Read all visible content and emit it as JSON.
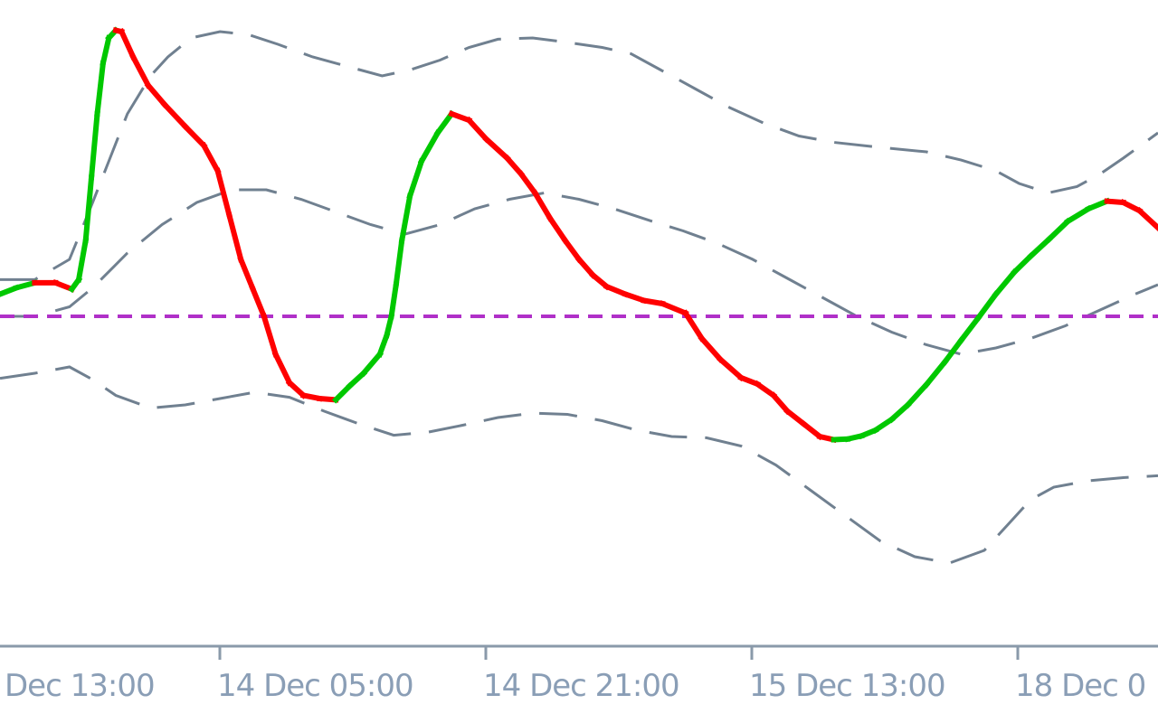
{
  "chart_data": {
    "type": "line",
    "title": "",
    "xlabel": "",
    "ylabel": "",
    "x_tick_labels": [
      "Dec 13:00",
      "14 Dec 05:00",
      "14 Dec 21:00",
      "15 Dec 13:00",
      "18 Dec 0"
    ],
    "x_range": [
      0,
      1
    ],
    "y_range": [
      0,
      1
    ],
    "grid": false,
    "legend": "none",
    "zero_line": {
      "y": 0.5,
      "color": "#b030c8",
      "style": "dashed"
    },
    "series": [
      {
        "role": "oscillator",
        "color_rising": "#00c800",
        "color_falling": "#ff0000",
        "points": [
          [
            0.0,
            0.465
          ],
          [
            0.014,
            0.455
          ],
          [
            0.03,
            0.447
          ],
          [
            0.048,
            0.447
          ],
          [
            0.062,
            0.457
          ],
          [
            0.068,
            0.442
          ],
          [
            0.074,
            0.38
          ],
          [
            0.079,
            0.28
          ],
          [
            0.084,
            0.18
          ],
          [
            0.089,
            0.1
          ],
          [
            0.094,
            0.06
          ],
          [
            0.1,
            0.048
          ],
          [
            0.105,
            0.05
          ],
          [
            0.115,
            0.09
          ],
          [
            0.128,
            0.135
          ],
          [
            0.142,
            0.165
          ],
          [
            0.16,
            0.2
          ],
          [
            0.176,
            0.23
          ],
          [
            0.188,
            0.27
          ],
          [
            0.198,
            0.34
          ],
          [
            0.208,
            0.41
          ],
          [
            0.218,
            0.455
          ],
          [
            0.228,
            0.5
          ],
          [
            0.238,
            0.56
          ],
          [
            0.25,
            0.605
          ],
          [
            0.262,
            0.625
          ],
          [
            0.276,
            0.63
          ],
          [
            0.29,
            0.632
          ],
          [
            0.302,
            0.61
          ],
          [
            0.314,
            0.59
          ],
          [
            0.328,
            0.56
          ],
          [
            0.334,
            0.53
          ],
          [
            0.338,
            0.5
          ],
          [
            0.342,
            0.45
          ],
          [
            0.347,
            0.38
          ],
          [
            0.354,
            0.31
          ],
          [
            0.364,
            0.255
          ],
          [
            0.378,
            0.21
          ],
          [
            0.39,
            0.18
          ],
          [
            0.405,
            0.19
          ],
          [
            0.42,
            0.22
          ],
          [
            0.438,
            0.25
          ],
          [
            0.45,
            0.275
          ],
          [
            0.462,
            0.305
          ],
          [
            0.475,
            0.345
          ],
          [
            0.488,
            0.38
          ],
          [
            0.5,
            0.41
          ],
          [
            0.512,
            0.435
          ],
          [
            0.524,
            0.453
          ],
          [
            0.54,
            0.465
          ],
          [
            0.556,
            0.475
          ],
          [
            0.572,
            0.48
          ],
          [
            0.592,
            0.495
          ],
          [
            0.606,
            0.535
          ],
          [
            0.622,
            0.568
          ],
          [
            0.64,
            0.597
          ],
          [
            0.654,
            0.607
          ],
          [
            0.668,
            0.625
          ],
          [
            0.68,
            0.65
          ],
          [
            0.694,
            0.67
          ],
          [
            0.708,
            0.69
          ],
          [
            0.72,
            0.695
          ],
          [
            0.732,
            0.694
          ],
          [
            0.744,
            0.689
          ],
          [
            0.756,
            0.68
          ],
          [
            0.77,
            0.663
          ],
          [
            0.784,
            0.64
          ],
          [
            0.8,
            0.608
          ],
          [
            0.816,
            0.572
          ],
          [
            0.83,
            0.538
          ],
          [
            0.845,
            0.502
          ],
          [
            0.86,
            0.465
          ],
          [
            0.876,
            0.43
          ],
          [
            0.89,
            0.405
          ],
          [
            0.906,
            0.378
          ],
          [
            0.922,
            0.35
          ],
          [
            0.94,
            0.33
          ],
          [
            0.956,
            0.318
          ],
          [
            0.97,
            0.32
          ],
          [
            0.984,
            0.333
          ],
          [
            1.0,
            0.36
          ]
        ]
      }
    ],
    "envelope_bands": [
      {
        "color": "#708090",
        "style": "dashed",
        "points": [
          [
            0.0,
            0.442
          ],
          [
            0.03,
            0.442
          ],
          [
            0.06,
            0.41
          ],
          [
            0.08,
            0.32
          ],
          [
            0.095,
            0.25
          ],
          [
            0.11,
            0.18
          ],
          [
            0.13,
            0.12
          ],
          [
            0.145,
            0.09
          ],
          [
            0.165,
            0.06
          ],
          [
            0.19,
            0.05
          ],
          [
            0.215,
            0.055
          ],
          [
            0.24,
            0.07
          ],
          [
            0.27,
            0.09
          ],
          [
            0.3,
            0.105
          ],
          [
            0.33,
            0.12
          ],
          [
            0.355,
            0.11
          ],
          [
            0.38,
            0.095
          ],
          [
            0.405,
            0.075
          ],
          [
            0.43,
            0.062
          ],
          [
            0.46,
            0.06
          ],
          [
            0.49,
            0.067
          ],
          [
            0.52,
            0.075
          ],
          [
            0.545,
            0.085
          ],
          [
            0.57,
            0.11
          ],
          [
            0.6,
            0.14
          ],
          [
            0.63,
            0.17
          ],
          [
            0.66,
            0.195
          ],
          [
            0.69,
            0.215
          ],
          [
            0.72,
            0.225
          ],
          [
            0.76,
            0.233
          ],
          [
            0.8,
            0.24
          ],
          [
            0.83,
            0.253
          ],
          [
            0.86,
            0.27
          ],
          [
            0.88,
            0.29
          ],
          [
            0.905,
            0.305
          ],
          [
            0.93,
            0.295
          ],
          [
            0.95,
            0.275
          ],
          [
            0.97,
            0.25
          ],
          [
            0.985,
            0.23
          ],
          [
            1.0,
            0.21
          ]
        ]
      },
      {
        "color": "#708090",
        "style": "dashed",
        "points": [
          [
            0.0,
            0.5
          ],
          [
            0.03,
            0.5
          ],
          [
            0.06,
            0.485
          ],
          [
            0.08,
            0.455
          ],
          [
            0.11,
            0.4
          ],
          [
            0.14,
            0.355
          ],
          [
            0.17,
            0.32
          ],
          [
            0.2,
            0.3
          ],
          [
            0.23,
            0.3
          ],
          [
            0.26,
            0.315
          ],
          [
            0.29,
            0.335
          ],
          [
            0.32,
            0.355
          ],
          [
            0.35,
            0.37
          ],
          [
            0.38,
            0.355
          ],
          [
            0.41,
            0.33
          ],
          [
            0.44,
            0.315
          ],
          [
            0.47,
            0.305
          ],
          [
            0.5,
            0.315
          ],
          [
            0.53,
            0.33
          ],
          [
            0.56,
            0.348
          ],
          [
            0.59,
            0.365
          ],
          [
            0.62,
            0.385
          ],
          [
            0.65,
            0.41
          ],
          [
            0.68,
            0.44
          ],
          [
            0.71,
            0.47
          ],
          [
            0.74,
            0.5
          ],
          [
            0.77,
            0.525
          ],
          [
            0.8,
            0.545
          ],
          [
            0.83,
            0.56
          ],
          [
            0.86,
            0.55
          ],
          [
            0.89,
            0.535
          ],
          [
            0.92,
            0.515
          ],
          [
            0.95,
            0.49
          ],
          [
            0.98,
            0.465
          ],
          [
            1.0,
            0.45
          ]
        ]
      },
      {
        "color": "#708090",
        "style": "dashed",
        "points": [
          [
            0.0,
            0.598
          ],
          [
            0.03,
            0.59
          ],
          [
            0.06,
            0.58
          ],
          [
            0.08,
            0.6
          ],
          [
            0.1,
            0.625
          ],
          [
            0.13,
            0.645
          ],
          [
            0.16,
            0.64
          ],
          [
            0.19,
            0.63
          ],
          [
            0.22,
            0.62
          ],
          [
            0.25,
            0.628
          ],
          [
            0.28,
            0.65
          ],
          [
            0.31,
            0.67
          ],
          [
            0.34,
            0.688
          ],
          [
            0.37,
            0.683
          ],
          [
            0.4,
            0.672
          ],
          [
            0.43,
            0.66
          ],
          [
            0.46,
            0.653
          ],
          [
            0.49,
            0.655
          ],
          [
            0.52,
            0.665
          ],
          [
            0.55,
            0.68
          ],
          [
            0.58,
            0.69
          ],
          [
            0.61,
            0.692
          ],
          [
            0.64,
            0.705
          ],
          [
            0.67,
            0.735
          ],
          [
            0.7,
            0.775
          ],
          [
            0.73,
            0.815
          ],
          [
            0.76,
            0.855
          ],
          [
            0.79,
            0.88
          ],
          [
            0.82,
            0.89
          ],
          [
            0.85,
            0.87
          ],
          [
            0.87,
            0.83
          ],
          [
            0.89,
            0.79
          ],
          [
            0.91,
            0.77
          ],
          [
            0.94,
            0.76
          ],
          [
            0.97,
            0.755
          ],
          [
            1.0,
            0.752
          ]
        ]
      }
    ]
  }
}
